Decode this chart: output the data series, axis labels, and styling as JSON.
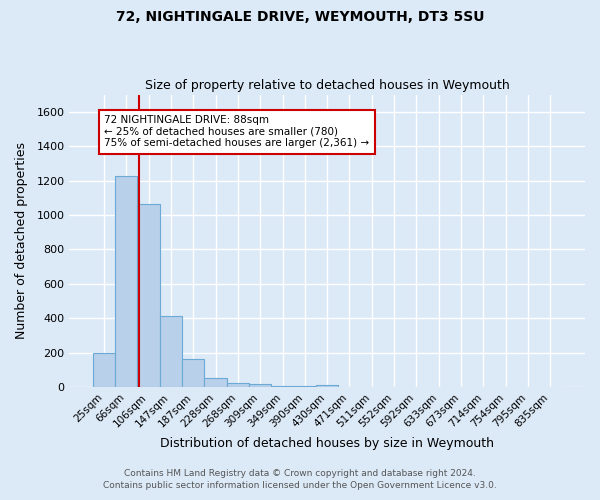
{
  "title1": "72, NIGHTINGALE DRIVE, WEYMOUTH, DT3 5SU",
  "title2": "Size of property relative to detached houses in Weymouth",
  "xlabel": "Distribution of detached houses by size in Weymouth",
  "ylabel": "Number of detached properties",
  "categories": [
    "25sqm",
    "66sqm",
    "106sqm",
    "147sqm",
    "187sqm",
    "228sqm",
    "268sqm",
    "309sqm",
    "349sqm",
    "390sqm",
    "430sqm",
    "471sqm",
    "511sqm",
    "552sqm",
    "592sqm",
    "633sqm",
    "673sqm",
    "714sqm",
    "754sqm",
    "795sqm",
    "835sqm"
  ],
  "values": [
    200,
    1225,
    1065,
    410,
    163,
    50,
    22,
    15,
    8,
    8,
    10,
    0,
    0,
    0,
    0,
    0,
    0,
    0,
    0,
    0,
    0
  ],
  "bar_color": "#b8d0ea",
  "bar_edge_color": "#6aaad4",
  "background_color": "#dce9f7",
  "grid_color": "#ffffff",
  "vline_color": "#cc0000",
  "annotation_text": "72 NIGHTINGALE DRIVE: 88sqm\n← 25% of detached houses are smaller (780)\n75% of semi-detached houses are larger (2,361) →",
  "annotation_box_color": "#ffffff",
  "annotation_box_edge": "#cc0000",
  "footer1": "Contains HM Land Registry data © Crown copyright and database right 2024.",
  "footer2": "Contains public sector information licensed under the Open Government Licence v3.0.",
  "ylim": [
    0,
    1700
  ],
  "yticks": [
    0,
    200,
    400,
    600,
    800,
    1000,
    1200,
    1400,
    1600
  ]
}
